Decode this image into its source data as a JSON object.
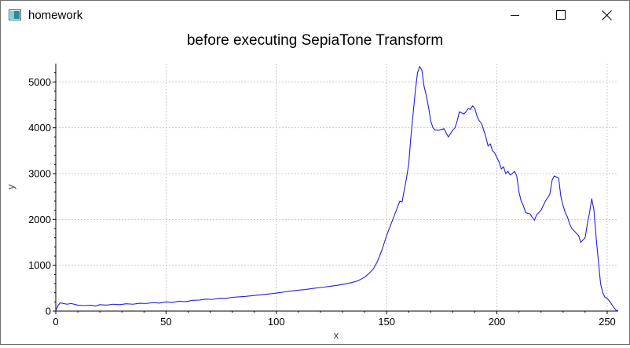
{
  "window": {
    "title": "homework",
    "icon": "app-window-icon",
    "controls": {
      "minimize_icon": "minimize-icon",
      "maximize_icon": "maximize-icon",
      "close_icon": "close-icon"
    }
  },
  "colors": {
    "line": "#2020e0",
    "grid": "#c8c8c8",
    "axis": "#000000"
  },
  "chart_data": {
    "type": "line",
    "title": "before executing SepiaTone Transform",
    "xlabel": "x",
    "ylabel": "y",
    "xlim": [
      0,
      255
    ],
    "ylim": [
      0,
      5400
    ],
    "xticks": [
      "0",
      "50",
      "100",
      "150",
      "200",
      "250"
    ],
    "yticks": [
      "0",
      "1000",
      "2000",
      "3000",
      "4000",
      "5000"
    ],
    "grid": true,
    "series": [
      {
        "points": [
          [
            0,
            10
          ],
          [
            1,
            120
          ],
          [
            2,
            180
          ],
          [
            3,
            170
          ],
          [
            5,
            150
          ],
          [
            7,
            165
          ],
          [
            10,
            130
          ],
          [
            13,
            120
          ],
          [
            16,
            130
          ],
          [
            18,
            110
          ],
          [
            20,
            140
          ],
          [
            23,
            130
          ],
          [
            26,
            150
          ],
          [
            29,
            140
          ],
          [
            32,
            160
          ],
          [
            35,
            150
          ],
          [
            38,
            170
          ],
          [
            41,
            165
          ],
          [
            44,
            185
          ],
          [
            47,
            175
          ],
          [
            50,
            200
          ],
          [
            53,
            190
          ],
          [
            56,
            215
          ],
          [
            59,
            205
          ],
          [
            62,
            235
          ],
          [
            65,
            240
          ],
          [
            68,
            260
          ],
          [
            71,
            255
          ],
          [
            74,
            280
          ],
          [
            77,
            275
          ],
          [
            80,
            300
          ],
          [
            83,
            310
          ],
          [
            86,
            320
          ],
          [
            89,
            335
          ],
          [
            92,
            350
          ],
          [
            95,
            365
          ],
          [
            98,
            380
          ],
          [
            101,
            400
          ],
          [
            104,
            420
          ],
          [
            107,
            440
          ],
          [
            110,
            455
          ],
          [
            113,
            470
          ],
          [
            116,
            490
          ],
          [
            119,
            510
          ],
          [
            122,
            525
          ],
          [
            125,
            545
          ],
          [
            128,
            565
          ],
          [
            131,
            590
          ],
          [
            134,
            620
          ],
          [
            137,
            660
          ],
          [
            140,
            740
          ],
          [
            142,
            820
          ],
          [
            144,
            920
          ],
          [
            146,
            1100
          ],
          [
            148,
            1350
          ],
          [
            150,
            1650
          ],
          [
            152,
            1900
          ],
          [
            154,
            2150
          ],
          [
            156,
            2400
          ],
          [
            157,
            2380
          ],
          [
            159,
            2900
          ],
          [
            160,
            3200
          ],
          [
            161,
            3800
          ],
          [
            162,
            4300
          ],
          [
            163,
            4800
          ],
          [
            164,
            5200
          ],
          [
            165,
            5340
          ],
          [
            166,
            5250
          ],
          [
            167,
            4900
          ],
          [
            168,
            4700
          ],
          [
            169,
            4450
          ],
          [
            170,
            4150
          ],
          [
            171,
            4000
          ],
          [
            172,
            3950
          ],
          [
            174,
            3950
          ],
          [
            176,
            3980
          ],
          [
            178,
            3800
          ],
          [
            180,
            3950
          ],
          [
            181,
            4000
          ],
          [
            182,
            4150
          ],
          [
            183,
            4350
          ],
          [
            185,
            4300
          ],
          [
            186,
            4350
          ],
          [
            187,
            4420
          ],
          [
            188,
            4400
          ],
          [
            189,
            4480
          ],
          [
            190,
            4420
          ],
          [
            191,
            4250
          ],
          [
            192,
            4150
          ],
          [
            193,
            4100
          ],
          [
            194,
            3950
          ],
          [
            195,
            3800
          ],
          [
            196,
            3600
          ],
          [
            197,
            3650
          ],
          [
            198,
            3500
          ],
          [
            199,
            3450
          ],
          [
            200,
            3350
          ],
          [
            201,
            3250
          ],
          [
            202,
            3100
          ],
          [
            203,
            3150
          ],
          [
            204,
            3000
          ],
          [
            205,
            3050
          ],
          [
            206,
            2970
          ],
          [
            207,
            3000
          ],
          [
            208,
            3050
          ],
          [
            209,
            2950
          ],
          [
            210,
            2600
          ],
          [
            211,
            2400
          ],
          [
            212,
            2300
          ],
          [
            213,
            2150
          ],
          [
            215,
            2120
          ],
          [
            216,
            2050
          ],
          [
            217,
            1980
          ],
          [
            218,
            2100
          ],
          [
            220,
            2200
          ],
          [
            222,
            2400
          ],
          [
            224,
            2550
          ],
          [
            225,
            2850
          ],
          [
            226,
            2950
          ],
          [
            228,
            2900
          ],
          [
            229,
            2500
          ],
          [
            230,
            2300
          ],
          [
            231,
            2150
          ],
          [
            232,
            2050
          ],
          [
            233,
            1900
          ],
          [
            234,
            1800
          ],
          [
            235,
            1750
          ],
          [
            236,
            1700
          ],
          [
            237,
            1650
          ],
          [
            238,
            1500
          ],
          [
            239,
            1550
          ],
          [
            240,
            1600
          ],
          [
            241,
            1900
          ],
          [
            242,
            2150
          ],
          [
            243,
            2450
          ],
          [
            244,
            2200
          ],
          [
            245,
            1600
          ],
          [
            246,
            1100
          ],
          [
            247,
            600
          ],
          [
            248,
            400
          ],
          [
            249,
            300
          ],
          [
            250,
            280
          ],
          [
            251,
            220
          ],
          [
            252,
            150
          ],
          [
            253,
            80
          ],
          [
            254,
            20
          ],
          [
            255,
            0
          ]
        ]
      }
    ]
  }
}
